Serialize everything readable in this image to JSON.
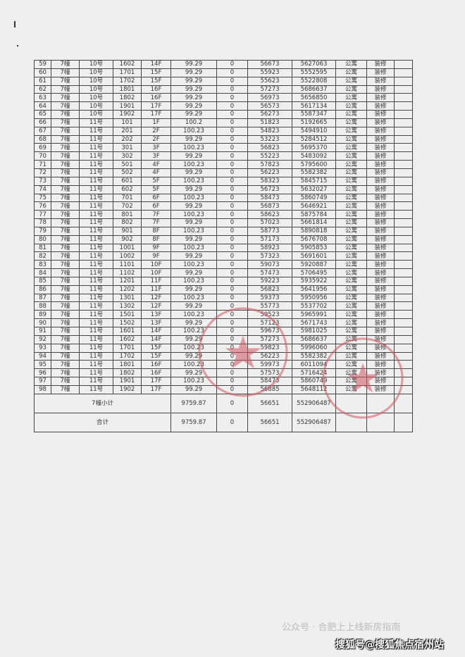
{
  "table": {
    "rows": [
      [
        "59",
        "7幢",
        "10号",
        "1602",
        "14F",
        "99.29",
        "0",
        "56673",
        "5627063",
        "公寓",
        "装修"
      ],
      [
        "60",
        "7幢",
        "10号",
        "1701",
        "15F",
        "99.29",
        "0",
        "55923",
        "5552595",
        "公寓",
        "装修"
      ],
      [
        "61",
        "7幢",
        "10号",
        "1702",
        "15F",
        "99.29",
        "0",
        "55623",
        "5522808",
        "公寓",
        "装修"
      ],
      [
        "62",
        "7幢",
        "10号",
        "1801",
        "16F",
        "99.29",
        "0",
        "57273",
        "5686637",
        "公寓",
        "装修"
      ],
      [
        "63",
        "7幢",
        "10号",
        "1802",
        "16F",
        "99.29",
        "0",
        "56973",
        "5656850",
        "公寓",
        "装修"
      ],
      [
        "64",
        "7幢",
        "10号",
        "1901",
        "17F",
        "99.29",
        "0",
        "56573",
        "5617134",
        "公寓",
        "装修"
      ],
      [
        "65",
        "7幢",
        "10号",
        "1902",
        "17F",
        "99.29",
        "0",
        "56273",
        "5587347",
        "公寓",
        "装修"
      ],
      [
        "66",
        "7幢",
        "11号",
        "101",
        "1F",
        "100.2",
        "0",
        "51823",
        "5192665",
        "公寓",
        "装修"
      ],
      [
        "67",
        "7幢",
        "11号",
        "201",
        "2F",
        "100.23",
        "0",
        "54823",
        "5494910",
        "公寓",
        "装修"
      ],
      [
        "68",
        "7幢",
        "11号",
        "202",
        "2F",
        "99.29",
        "0",
        "53223",
        "5284512",
        "公寓",
        "装修"
      ],
      [
        "69",
        "7幢",
        "11号",
        "301",
        "3F",
        "100.23",
        "0",
        "56823",
        "5695370",
        "公寓",
        "装修"
      ],
      [
        "70",
        "7幢",
        "11号",
        "302",
        "3F",
        "99.29",
        "0",
        "55223",
        "5483092",
        "公寓",
        "装修"
      ],
      [
        "71",
        "7幢",
        "11号",
        "501",
        "4F",
        "100.23",
        "0",
        "57823",
        "5795600",
        "公寓",
        "装修"
      ],
      [
        "72",
        "7幢",
        "11号",
        "502",
        "4F",
        "99.29",
        "0",
        "56223",
        "5582382",
        "公寓",
        "装修"
      ],
      [
        "73",
        "7幢",
        "11号",
        "601",
        "5F",
        "100.23",
        "0",
        "58323",
        "5845715",
        "公寓",
        "装修"
      ],
      [
        "74",
        "7幢",
        "11号",
        "602",
        "5F",
        "99.29",
        "0",
        "56723",
        "5632027",
        "公寓",
        "装修"
      ],
      [
        "75",
        "7幢",
        "11号",
        "701",
        "6F",
        "100.23",
        "0",
        "58473",
        "5860749",
        "公寓",
        "装修"
      ],
      [
        "76",
        "7幢",
        "11号",
        "702",
        "6F",
        "99.29",
        "0",
        "56873",
        "5646921",
        "公寓",
        "装修"
      ],
      [
        "77",
        "7幢",
        "11号",
        "801",
        "7F",
        "100.23",
        "0",
        "58623",
        "5875784",
        "公寓",
        "装修"
      ],
      [
        "78",
        "7幢",
        "11号",
        "802",
        "7F",
        "99.29",
        "0",
        "57023",
        "5661814",
        "公寓",
        "装修"
      ],
      [
        "79",
        "7幢",
        "11号",
        "901",
        "8F",
        "100.23",
        "0",
        "58773",
        "5890818",
        "公寓",
        "装修"
      ],
      [
        "80",
        "7幢",
        "11号",
        "902",
        "8F",
        "99.29",
        "0",
        "57173",
        "5676708",
        "公寓",
        "装修"
      ],
      [
        "81",
        "7幢",
        "11号",
        "1001",
        "9F",
        "100.23",
        "0",
        "58923",
        "5905853",
        "公寓",
        "装修"
      ],
      [
        "82",
        "7幢",
        "11号",
        "1002",
        "9F",
        "99.29",
        "0",
        "57323",
        "5691601",
        "公寓",
        "装修"
      ],
      [
        "83",
        "7幢",
        "11号",
        "1101",
        "10F",
        "100.23",
        "0",
        "59073",
        "5920887",
        "公寓",
        "装修"
      ],
      [
        "84",
        "7幢",
        "11号",
        "1102",
        "10F",
        "99.29",
        "0",
        "57473",
        "5706495",
        "公寓",
        "装修"
      ],
      [
        "85",
        "7幢",
        "11号",
        "1201",
        "11F",
        "100.23",
        "0",
        "59223",
        "5935922",
        "公寓",
        "装修"
      ],
      [
        "86",
        "7幢",
        "11号",
        "1202",
        "11F",
        "99.29",
        "0",
        "56823",
        "5641956",
        "公寓",
        "装修"
      ],
      [
        "87",
        "7幢",
        "11号",
        "1301",
        "12F",
        "100.23",
        "0",
        "59373",
        "5950956",
        "公寓",
        "装修"
      ],
      [
        "88",
        "7幢",
        "11号",
        "1302",
        "12F",
        "99.29",
        "0",
        "55773",
        "5537702",
        "公寓",
        "装修"
      ],
      [
        "89",
        "7幢",
        "11号",
        "1501",
        "13F",
        "100.23",
        "0",
        "59523",
        "5965991",
        "公寓",
        "装修"
      ],
      [
        "90",
        "7幢",
        "11号",
        "1502",
        "13F",
        "99.29",
        "0",
        "57123",
        "5671743",
        "公寓",
        "装修"
      ],
      [
        "91",
        "7幢",
        "11号",
        "1601",
        "14F",
        "100.23",
        "0",
        "59673",
        "5981025",
        "公寓",
        "装修"
      ],
      [
        "92",
        "7幢",
        "11号",
        "1602",
        "14F",
        "99.29",
        "0",
        "57273",
        "5686637",
        "公寓",
        "装修"
      ],
      [
        "93",
        "7幢",
        "11号",
        "1701",
        "15F",
        "100.23",
        "0",
        "59823",
        "5996060",
        "公寓",
        "装修"
      ],
      [
        "94",
        "7幢",
        "11号",
        "1702",
        "15F",
        "99.29",
        "0",
        "56223",
        "5582382",
        "公寓",
        "装修"
      ],
      [
        "95",
        "7幢",
        "11号",
        "1801",
        "16F",
        "100.23",
        "0",
        "59973",
        "6011094",
        "公寓",
        "装修"
      ],
      [
        "96",
        "7幢",
        "11号",
        "1802",
        "16F",
        "99.29",
        "0",
        "57573",
        "5716424",
        "公寓",
        "装修"
      ],
      [
        "97",
        "7幢",
        "11号",
        "1901",
        "17F",
        "100.23",
        "0",
        "58473",
        "5860749",
        "公寓",
        "装修"
      ],
      [
        "98",
        "7幢",
        "11号",
        "1902",
        "17F",
        "99.29",
        "0",
        "56885",
        "5648112",
        "公寓",
        "装修"
      ]
    ],
    "subtotal": {
      "label": "7幢小计",
      "area": "9759.87",
      "other": "0",
      "avg_price": "56651",
      "total": "552906487"
    },
    "total": {
      "label": "合计",
      "area": "9759.87",
      "other": "0",
      "avg_price": "56651",
      "total": "552906487"
    }
  },
  "stamp_color": "#d0585f",
  "watermark": {
    "faint": "公众号 · 合肥上上线新房指南",
    "main": "搜狐号@搜狐焦点宿州站"
  }
}
